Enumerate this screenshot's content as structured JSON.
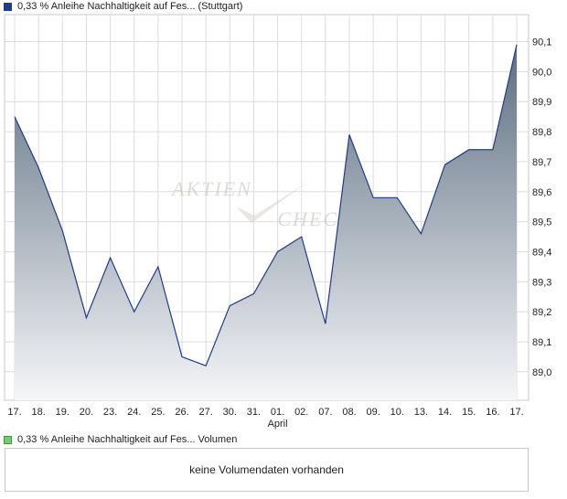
{
  "legend_price": {
    "label": "0,33 % Anleihe Nachhaltigkeit auf Fes... (Stuttgart)",
    "color": "#1f3b8f"
  },
  "legend_volume": {
    "label": "0,33 % Anleihe Nachhaltigkeit auf Fes... Volumen",
    "color": "#6fce6f"
  },
  "volume_panel": {
    "message": "keine Volumendaten vorhanden"
  },
  "watermark": {
    "text": "AKTIEN CHECK"
  },
  "chart_data": {
    "type": "area",
    "x": [
      "17.",
      "18.",
      "19.",
      "20.",
      "23.",
      "24.",
      "25.",
      "26.",
      "27.",
      "30.",
      "31.",
      "01.",
      "02.",
      "07.",
      "08.",
      "09.",
      "10.",
      "13.",
      "14.",
      "15.",
      "16.",
      "17."
    ],
    "month_labels": [
      {
        "index": 11,
        "label": "April"
      }
    ],
    "series": [
      {
        "values": [
          89.85,
          89.68,
          89.47,
          89.18,
          89.38,
          89.2,
          89.35,
          89.05,
          89.02,
          89.22,
          89.26,
          89.4,
          89.45,
          89.16,
          89.79,
          89.58,
          89.58,
          89.46,
          89.69,
          89.74,
          89.74,
          90.09
        ]
      }
    ],
    "y_ticks": [
      "89,0",
      "89,1",
      "89,2",
      "89,3",
      "89,4",
      "89,5",
      "89,6",
      "89,7",
      "89,8",
      "89,9",
      "90,0",
      "90,1"
    ],
    "ylim": [
      88.905,
      90.19
    ],
    "grid": true,
    "line_color": "#1f3b8f",
    "fill_top_color": "#5c6e80",
    "fill_bottom_color": "#f5f6f8"
  }
}
